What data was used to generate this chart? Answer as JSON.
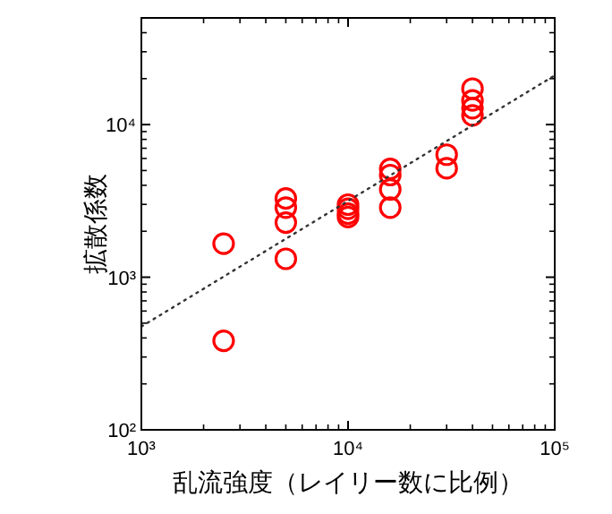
{
  "chart_data": {
    "type": "scatter",
    "xlabel": "乱流強度（レイリー数に比例）",
    "ylabel": "拡散係数",
    "log": "xy",
    "xlim": [
      1000,
      100000
    ],
    "ylim": [
      100,
      50000
    ],
    "xticks": [
      {
        "value": 1000,
        "label": "10³"
      },
      {
        "value": 10000,
        "label": "10⁴"
      },
      {
        "value": 100000,
        "label": "10⁵"
      }
    ],
    "yticks": [
      {
        "value": 100,
        "label": "10²"
      },
      {
        "value": 1000,
        "label": "10³"
      },
      {
        "value": 10000,
        "label": "10⁴"
      }
    ],
    "grid": false,
    "series": [
      {
        "marker": "circle",
        "color": "#ff0000",
        "x": [
          2500,
          2500,
          5000,
          5000,
          5000,
          5000,
          10000,
          10000,
          10000,
          10000,
          16000,
          16000,
          16000,
          16000,
          30000,
          30000,
          40000,
          40000,
          40000,
          40000
        ],
        "values": [
          1660,
          383,
          3280,
          2860,
          2280,
          1320,
          2990,
          2810,
          2610,
          2480,
          5120,
          4670,
          3760,
          2860,
          6350,
          5170,
          17200,
          14400,
          12800,
          11500
        ]
      },
      {
        "type": "line",
        "marker": "none",
        "color": "#333333",
        "line_style": "dotted",
        "x": [
          1000,
          100000
        ],
        "values": [
          475,
          21000
        ]
      }
    ]
  }
}
